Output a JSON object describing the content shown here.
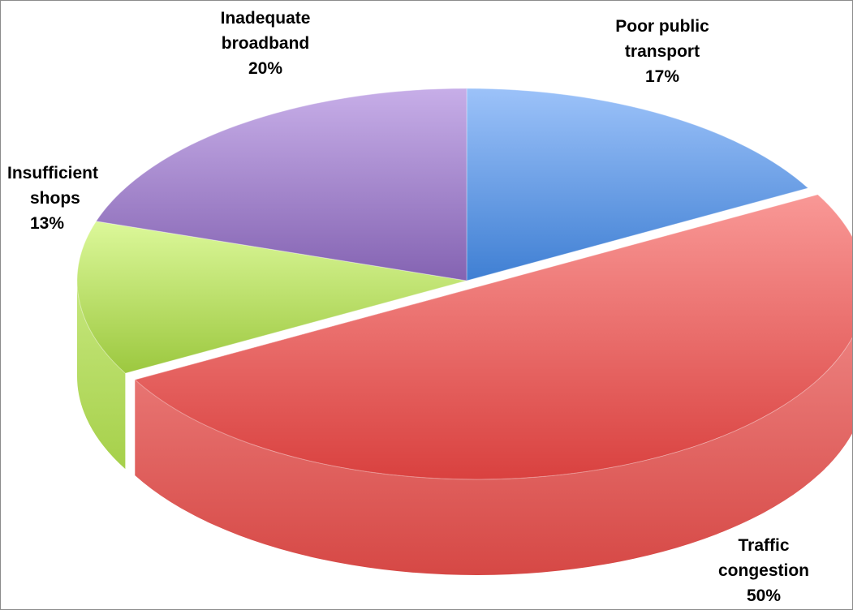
{
  "chart_data": {
    "type": "pie",
    "style": "3d-exploded",
    "title": "",
    "categories": [
      "Poor public transport",
      "Traffic congestion",
      "Insufficient shops",
      "Inadequate broadband"
    ],
    "values": [
      17,
      50,
      13,
      20
    ],
    "data_labels": [
      {
        "lines": [
          "Poor public",
          "transport"
        ],
        "percent": "17%"
      },
      {
        "lines": [
          "Traffic",
          "congestion"
        ],
        "percent": "50%"
      },
      {
        "lines": [
          "Insufficient",
          "shops"
        ],
        "percent": "13%"
      },
      {
        "lines": [
          "Inadequate",
          "broadband"
        ],
        "percent": "20%"
      }
    ],
    "colors": {
      "poor_public_transport": "#558ED5",
      "traffic_congestion": "#E46C6A",
      "insufficient_shops": "#B3D66A",
      "inadequate_broadband": "#9B7BBF"
    },
    "exploded_slice": "Traffic congestion",
    "legend": "none"
  }
}
